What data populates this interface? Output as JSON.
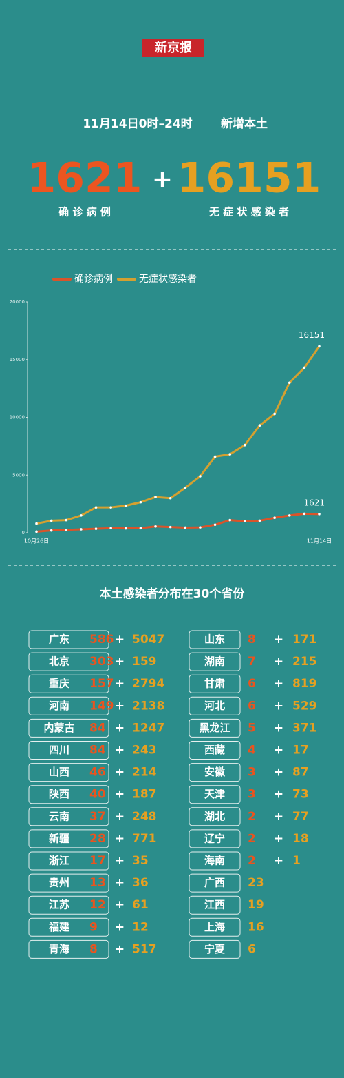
{
  "header": {
    "logo": "新京报",
    "title": "11月14日0时–24时",
    "subtitle": "新增本土",
    "confirmed_value": 1621,
    "confirmed_label": "确 诊 病 例",
    "asymptomatic_value": 16151,
    "asymptomatic_label": "无 症 状 感 染 者"
  },
  "chart_data": {
    "type": "line",
    "categories": [
      "10月26日",
      null,
      null,
      null,
      null,
      null,
      null,
      null,
      null,
      null,
      null,
      null,
      null,
      null,
      null,
      null,
      null,
      null,
      null,
      "11月14日"
    ],
    "series": [
      {
        "name": "确诊病例",
        "color": "#d9542a",
        "values": [
          100,
          200,
          250,
          300,
          350,
          400,
          380,
          400,
          550,
          500,
          450,
          470,
          700,
          1100,
          1000,
          1050,
          1300,
          1500,
          1650,
          1621
        ]
      },
      {
        "name": "无症状感染者",
        "color": "#d4a030",
        "values": [
          800,
          1050,
          1100,
          1500,
          2200,
          2200,
          2350,
          2650,
          3100,
          3000,
          3900,
          4900,
          6600,
          6800,
          7600,
          9300,
          10300,
          13000,
          14300,
          16151
        ]
      }
    ],
    "ylim": [
      0,
      20000
    ],
    "yticks": [
      0,
      5000,
      10000,
      15000,
      20000
    ],
    "grid": false
  },
  "table": {
    "title": "本土感染者分布在30个省份",
    "columns": [
      [
        {
          "name": "广东",
          "confirmed": 586,
          "asymptomatic": 5047
        },
        {
          "name": "北京",
          "confirmed": 303,
          "asymptomatic": 159
        },
        {
          "name": "重庆",
          "confirmed": 157,
          "asymptomatic": 2794
        },
        {
          "name": "河南",
          "confirmed": 149,
          "asymptomatic": 2138
        },
        {
          "name": "内蒙古",
          "confirmed": 84,
          "asymptomatic": 1247
        },
        {
          "name": "四川",
          "confirmed": 84,
          "asymptomatic": 243
        },
        {
          "name": "山西",
          "confirmed": 46,
          "asymptomatic": 214
        },
        {
          "name": "陕西",
          "confirmed": 40,
          "asymptomatic": 187
        },
        {
          "name": "云南",
          "confirmed": 37,
          "asymptomatic": 248
        },
        {
          "name": "新疆",
          "confirmed": 28,
          "asymptomatic": 771
        },
        {
          "name": "浙江",
          "confirmed": 17,
          "asymptomatic": 35
        },
        {
          "name": "贵州",
          "confirmed": 13,
          "asymptomatic": 36
        },
        {
          "name": "江苏",
          "confirmed": 12,
          "asymptomatic": 61
        },
        {
          "name": "福建",
          "confirmed": 9,
          "asymptomatic": 12
        },
        {
          "name": "青海",
          "confirmed": 8,
          "asymptomatic": 517
        }
      ],
      [
        {
          "name": "山东",
          "confirmed": 8,
          "asymptomatic": 171
        },
        {
          "name": "湖南",
          "confirmed": 7,
          "asymptomatic": 215
        },
        {
          "name": "甘肃",
          "confirmed": 6,
          "asymptomatic": 819
        },
        {
          "name": "河北",
          "confirmed": 6,
          "asymptomatic": 529
        },
        {
          "name": "黑龙江",
          "confirmed": 5,
          "asymptomatic": 371
        },
        {
          "name": "西藏",
          "confirmed": 4,
          "asymptomatic": 17
        },
        {
          "name": "安徽",
          "confirmed": 3,
          "asymptomatic": 87
        },
        {
          "name": "天津",
          "confirmed": 3,
          "asymptomatic": 73
        },
        {
          "name": "湖北",
          "confirmed": 2,
          "asymptomatic": 77
        },
        {
          "name": "辽宁",
          "confirmed": 2,
          "asymptomatic": 18
        },
        {
          "name": "海南",
          "confirmed": 2,
          "asymptomatic": 1
        },
        {
          "name": "广西",
          "asymptomatic": 23
        },
        {
          "name": "江西",
          "asymptomatic": 19
        },
        {
          "name": "上海",
          "asymptomatic": 16
        },
        {
          "name": "宁夏",
          "asymptomatic": 6
        }
      ]
    ]
  }
}
